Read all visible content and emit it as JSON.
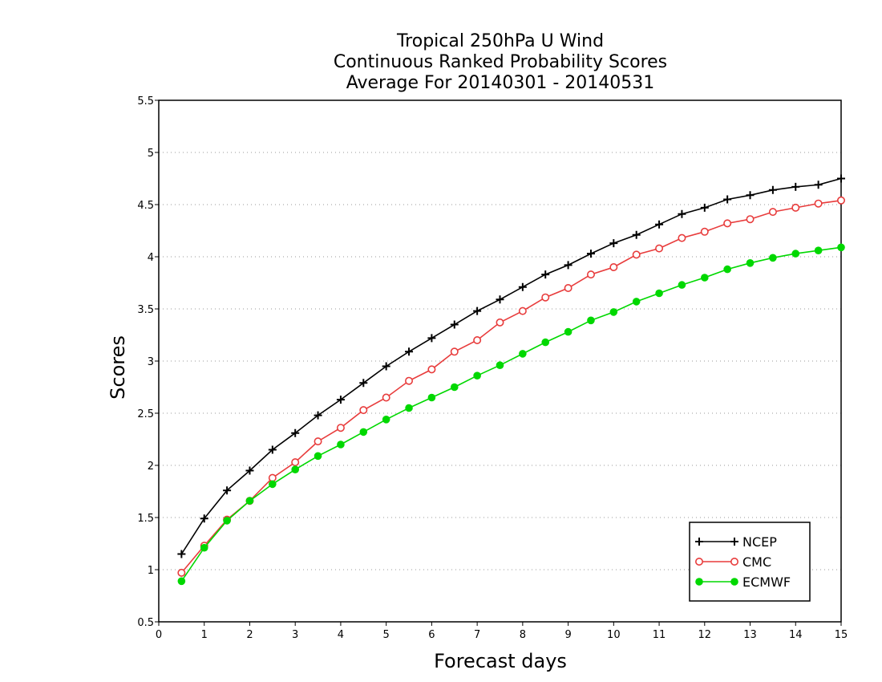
{
  "chart_data": {
    "type": "line",
    "title": [
      "Tropical 250hPa U Wind",
      "Continuous Ranked Probability Scores",
      "Average For 20140301 - 20140531"
    ],
    "xlabel": "Forecast days",
    "ylabel": "Scores",
    "xlim": [
      0,
      15
    ],
    "ylim": [
      0.5,
      5.5
    ],
    "x_ticks": [
      "0",
      "1",
      "2",
      "3",
      "4",
      "5",
      "6",
      "7",
      "8",
      "9",
      "10",
      "11",
      "12",
      "13",
      "14",
      "15"
    ],
    "y_ticks": [
      "0.5",
      "1",
      "1.5",
      "2",
      "2.5",
      "3",
      "3.5",
      "4",
      "4.5",
      "5",
      "5.5"
    ],
    "grid": "horizontal dotted",
    "legend_position": "bottom-right",
    "x": [
      0.5,
      1,
      1.5,
      2,
      2.5,
      3,
      3.5,
      4,
      4.5,
      5,
      5.5,
      6,
      6.5,
      7,
      7.5,
      8,
      8.5,
      9,
      9.5,
      10,
      10.5,
      11,
      11.5,
      12,
      12.5,
      13,
      13.5,
      14,
      14.5,
      15
    ],
    "series": [
      {
        "name": "NCEP",
        "color": "#000000",
        "marker": "plus",
        "values": [
          1.15,
          1.49,
          1.76,
          1.95,
          2.15,
          2.31,
          2.48,
          2.63,
          2.79,
          2.95,
          3.09,
          3.22,
          3.35,
          3.48,
          3.59,
          3.71,
          3.83,
          3.92,
          4.03,
          4.13,
          4.21,
          4.31,
          4.41,
          4.47,
          4.55,
          4.59,
          4.64,
          4.67,
          4.69,
          4.75
        ]
      },
      {
        "name": "CMC",
        "color": "#e83c3c",
        "marker": "open-circle",
        "values": [
          0.97,
          1.23,
          1.48,
          1.66,
          1.88,
          2.03,
          2.23,
          2.36,
          2.53,
          2.65,
          2.81,
          2.92,
          3.09,
          3.2,
          3.37,
          3.48,
          3.61,
          3.7,
          3.83,
          3.9,
          4.02,
          4.08,
          4.18,
          4.24,
          4.32,
          4.36,
          4.43,
          4.47,
          4.51,
          4.54
        ]
      },
      {
        "name": "ECMWF",
        "color": "#00d800",
        "marker": "filled-circle",
        "values": [
          0.89,
          1.21,
          1.47,
          1.66,
          1.82,
          1.96,
          2.09,
          2.2,
          2.32,
          2.44,
          2.55,
          2.65,
          2.75,
          2.86,
          2.96,
          3.07,
          3.18,
          3.28,
          3.39,
          3.47,
          3.57,
          3.65,
          3.73,
          3.8,
          3.88,
          3.94,
          3.99,
          4.03,
          4.06,
          4.09
        ]
      }
    ]
  }
}
